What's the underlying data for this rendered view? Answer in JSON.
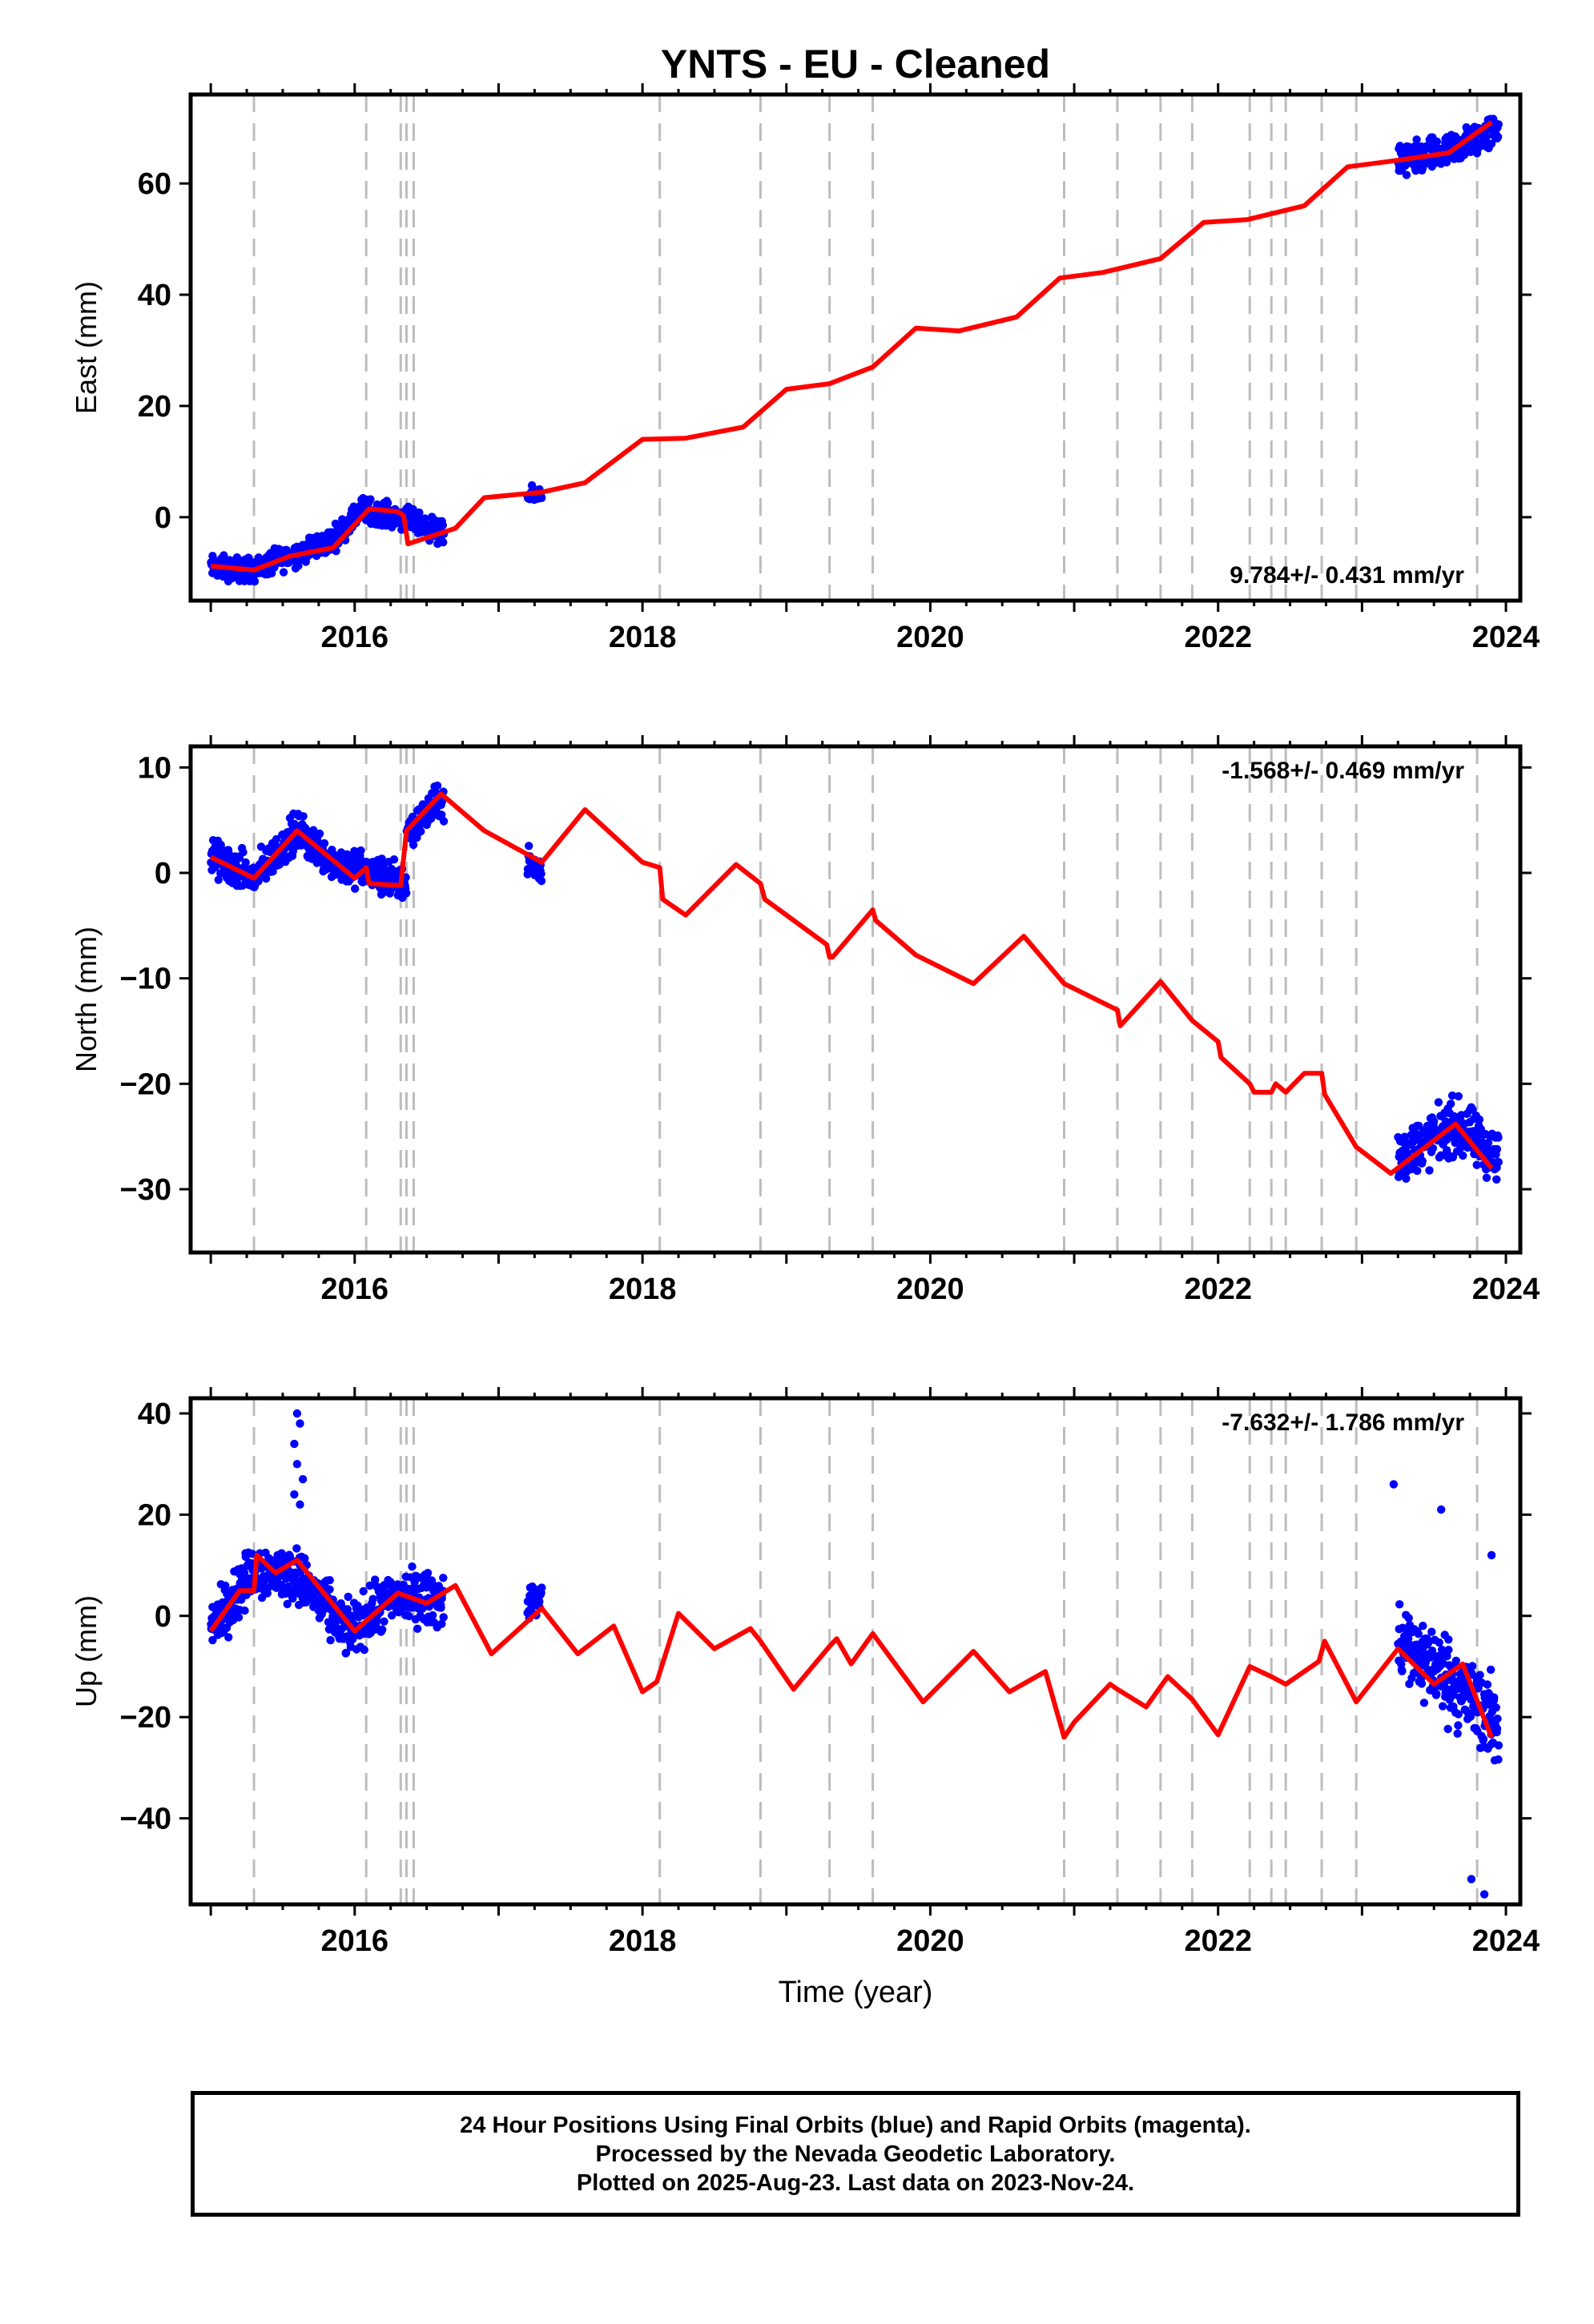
{
  "figure": {
    "title": "YNTS  - EU - Cleaned",
    "xlabel": "Time (year)"
  },
  "footer": {
    "line1": "24 Hour Positions Using Final Orbits (blue) and Rapid Orbits (magenta).",
    "line2": "Processed by the Nevada Geodetic Laboratory.",
    "line3": "Plotted on 2025-Aug-23. Last data on 2023-Nov-24."
  },
  "chart_data": [
    {
      "type": "scatter",
      "panel": "east",
      "ylabel": "East (mm)",
      "velocity_label": "9.784+/- 0.431 mm/yr",
      "xlim": [
        2014.86,
        2024.1
      ],
      "ylim": [
        -15,
        76
      ],
      "xticks": [
        2016,
        2018,
        2020,
        2022,
        2024
      ],
      "yticks": [
        0,
        20,
        40,
        60
      ],
      "colors": {
        "points": "#0000ff",
        "model": "#ff0000",
        "steps": "#bdbdbd"
      },
      "step_epochs": [
        2015.3,
        2016.08,
        2016.32,
        2016.36,
        2016.41,
        2018.12,
        2018.82,
        2019.3,
        2019.6,
        2020.93,
        2021.3,
        2021.6,
        2021.82,
        2022.22,
        2022.37,
        2022.47,
        2022.72,
        2022.96,
        2023.8
      ],
      "series": [
        {
          "name": "Final Orbits",
          "segments": [
            {
              "x_range": [
                2015.0,
                2016.62
              ],
              "trend": [
                [
                  2015.0,
                  -9
                ],
                [
                  2015.3,
                  -9.5
                ],
                [
                  2015.6,
                  -6.5
                ],
                [
                  2015.85,
                  -4
                ],
                [
                  2016.05,
                  1.5
                ],
                [
                  2016.32,
                  0
                ],
                [
                  2016.62,
                  -3
                ]
              ],
              "spread": 2.8
            },
            {
              "x_range": [
                2017.2,
                2017.3
              ],
              "trend": [
                [
                  2017.2,
                  3.5
                ],
                [
                  2017.3,
                  4.5
                ]
              ],
              "spread": 2.0
            },
            {
              "x_range": [
                2023.25,
                2023.95
              ],
              "trend": [
                [
                  2023.25,
                  64
                ],
                [
                  2023.6,
                  65.5
                ],
                [
                  2023.95,
                  70
                ]
              ],
              "spread": 4.0
            }
          ]
        }
      ],
      "model": [
        [
          2015.0,
          -8.8
        ],
        [
          2015.3,
          -9.5
        ],
        [
          2015.55,
          -7
        ],
        [
          2015.85,
          -5.5
        ],
        [
          2016.1,
          1.5
        ],
        [
          2016.3,
          1
        ],
        [
          2016.34,
          0.3
        ],
        [
          2016.37,
          -4.8
        ],
        [
          2016.5,
          -3.7
        ],
        [
          2016.7,
          -2
        ],
        [
          2016.9,
          3.5
        ],
        [
          2017.1,
          4
        ],
        [
          2017.3,
          4.5
        ],
        [
          2017.6,
          6.2
        ],
        [
          2018.0,
          14
        ],
        [
          2018.3,
          14.2
        ],
        [
          2018.7,
          16.2
        ],
        [
          2019.0,
          23
        ],
        [
          2019.3,
          24
        ],
        [
          2019.6,
          27
        ],
        [
          2019.9,
          34
        ],
        [
          2020.2,
          33.5
        ],
        [
          2020.6,
          36
        ],
        [
          2020.9,
          43
        ],
        [
          2021.2,
          44
        ],
        [
          2021.6,
          46.5
        ],
        [
          2021.9,
          53
        ],
        [
          2022.2,
          53.5
        ],
        [
          2022.6,
          56
        ],
        [
          2022.9,
          63
        ],
        [
          2023.2,
          64
        ],
        [
          2023.6,
          65.5
        ],
        [
          2023.9,
          71
        ]
      ]
    },
    {
      "type": "scatter",
      "panel": "north",
      "ylabel": "North (mm)",
      "velocity_label": "-1.568+/- 0.469 mm/yr",
      "xlim": [
        2014.86,
        2024.1
      ],
      "ylim": [
        -36,
        12
      ],
      "xticks": [
        2016,
        2018,
        2020,
        2022,
        2024
      ],
      "yticks": [
        10,
        0,
        -10,
        -20,
        -30
      ],
      "colors": {
        "points": "#0000ff",
        "model": "#ff0000",
        "steps": "#bdbdbd"
      },
      "step_epochs": [
        2015.3,
        2016.08,
        2016.32,
        2016.36,
        2016.41,
        2018.12,
        2018.82,
        2019.3,
        2019.6,
        2020.93,
        2021.3,
        2021.6,
        2021.82,
        2022.22,
        2022.37,
        2022.47,
        2022.72,
        2022.96,
        2023.8
      ],
      "series": [
        {
          "name": "Final Orbits",
          "segments": [
            {
              "x_range": [
                2015.0,
                2016.36
              ],
              "trend": [
                [
                  2015.0,
                  1.5
                ],
                [
                  2015.3,
                  -0.5
                ],
                [
                  2015.6,
                  4
                ],
                [
                  2015.85,
                  1
                ],
                [
                  2016.1,
                  0
                ],
                [
                  2016.36,
                  -1
                ]
              ],
              "spread": 2.4
            },
            {
              "x_range": [
                2016.36,
                2016.62
              ],
              "trend": [
                [
                  2016.36,
                  4
                ],
                [
                  2016.62,
                  7
                ]
              ],
              "spread": 2.2
            },
            {
              "x_range": [
                2017.2,
                2017.3
              ],
              "trend": [
                [
                  2017.2,
                  1
                ],
                [
                  2017.3,
                  0
                ]
              ],
              "spread": 2.0
            },
            {
              "x_range": [
                2023.25,
                2023.95
              ],
              "trend": [
                [
                  2023.25,
                  -27
                ],
                [
                  2023.65,
                  -24
                ],
                [
                  2023.95,
                  -27
                ]
              ],
              "spread": 3.5
            }
          ]
        }
      ],
      "model": [
        [
          2015.0,
          1.5
        ],
        [
          2015.3,
          -0.5
        ],
        [
          2015.6,
          4
        ],
        [
          2016.0,
          -0.5
        ],
        [
          2016.08,
          0.5
        ],
        [
          2016.1,
          -1
        ],
        [
          2016.32,
          -1.2
        ],
        [
          2016.36,
          4
        ],
        [
          2016.6,
          7.5
        ],
        [
          2016.9,
          4
        ],
        [
          2017.3,
          1
        ],
        [
          2017.6,
          6
        ],
        [
          2018.0,
          1
        ],
        [
          2018.12,
          0.5
        ],
        [
          2018.14,
          -2.5
        ],
        [
          2018.3,
          -4
        ],
        [
          2018.65,
          0.8
        ],
        [
          2018.82,
          -1
        ],
        [
          2018.85,
          -2.5
        ],
        [
          2019.1,
          -5
        ],
        [
          2019.28,
          -6.8
        ],
        [
          2019.3,
          -8
        ],
        [
          2019.32,
          -8
        ],
        [
          2019.6,
          -3.5
        ],
        [
          2019.62,
          -4.5
        ],
        [
          2019.9,
          -7.8
        ],
        [
          2020.3,
          -10.5
        ],
        [
          2020.65,
          -6
        ],
        [
          2020.93,
          -10.5
        ],
        [
          2021.3,
          -13
        ],
        [
          2021.32,
          -14.5
        ],
        [
          2021.6,
          -10.3
        ],
        [
          2021.82,
          -14
        ],
        [
          2022.0,
          -16
        ],
        [
          2022.02,
          -17.5
        ],
        [
          2022.22,
          -20
        ],
        [
          2022.25,
          -20.8
        ],
        [
          2022.37,
          -20.8
        ],
        [
          2022.4,
          -20
        ],
        [
          2022.47,
          -20.8
        ],
        [
          2022.6,
          -19
        ],
        [
          2022.72,
          -19
        ],
        [
          2022.74,
          -21
        ],
        [
          2022.96,
          -26
        ],
        [
          2023.2,
          -28.5
        ],
        [
          2023.65,
          -23.8
        ],
        [
          2023.9,
          -28
        ]
      ]
    },
    {
      "type": "scatter",
      "panel": "up",
      "ylabel": "Up (mm)",
      "velocity_label": "-7.632+/- 1.786 mm/yr",
      "xlim": [
        2014.86,
        2024.1
      ],
      "ylim": [
        -57,
        43
      ],
      "xticks": [
        2016,
        2018,
        2020,
        2022,
        2024
      ],
      "yticks": [
        40,
        20,
        0,
        -20,
        -40
      ],
      "colors": {
        "points": "#0000ff",
        "model": "#ff0000",
        "steps": "#bdbdbd"
      },
      "step_epochs": [
        2015.3,
        2016.08,
        2016.32,
        2016.36,
        2016.41,
        2018.12,
        2018.82,
        2019.3,
        2019.6,
        2020.93,
        2021.3,
        2021.6,
        2021.82,
        2022.22,
        2022.37,
        2022.47,
        2022.72,
        2022.96,
        2023.8
      ],
      "series": [
        {
          "name": "Final Orbits",
          "segments": [
            {
              "x_range": [
                2015.0,
                2016.62
              ],
              "trend": [
                [
                  2015.0,
                  -2
                ],
                [
                  2015.3,
                  9
                ],
                [
                  2015.6,
                  8
                ],
                [
                  2015.95,
                  -3
                ],
                [
                  2016.3,
                  4
                ],
                [
                  2016.62,
                  3
                ]
              ],
              "spread": 7.0
            },
            {
              "x_range": [
                2017.2,
                2017.3
              ],
              "trend": [
                [
                  2017.2,
                  2
                ],
                [
                  2017.3,
                  4
                ]
              ],
              "spread": 4.0
            },
            {
              "x_range": [
                2023.25,
                2023.95
              ],
              "trend": [
                [
                  2023.25,
                  -5
                ],
                [
                  2023.6,
                  -12
                ],
                [
                  2023.95,
                  -22
                ]
              ],
              "spread": 11.0
            }
          ]
        },
        {
          "name": "Final Orbits outliers",
          "points": [
            [
              2015.6,
              40
            ],
            [
              2015.62,
              38
            ],
            [
              2015.58,
              34
            ],
            [
              2015.6,
              30
            ],
            [
              2015.64,
              27
            ],
            [
              2015.58,
              24
            ],
            [
              2015.62,
              22
            ],
            [
              2023.22,
              26
            ],
            [
              2023.55,
              21
            ],
            [
              2023.76,
              -52
            ],
            [
              2023.85,
              -55
            ],
            [
              2023.9,
              12
            ]
          ]
        }
      ],
      "model": [
        [
          2015.0,
          -3
        ],
        [
          2015.2,
          5
        ],
        [
          2015.3,
          5
        ],
        [
          2015.32,
          12
        ],
        [
          2015.45,
          8.5
        ],
        [
          2015.6,
          11
        ],
        [
          2015.8,
          4
        ],
        [
          2016.0,
          -3
        ],
        [
          2016.3,
          4.5
        ],
        [
          2016.5,
          2.5
        ],
        [
          2016.7,
          6
        ],
        [
          2016.95,
          -7.5
        ],
        [
          2017.3,
          1.5
        ],
        [
          2017.55,
          -7.5
        ],
        [
          2017.8,
          -2
        ],
        [
          2018.0,
          -15
        ],
        [
          2018.1,
          -13
        ],
        [
          2018.25,
          0.5
        ],
        [
          2018.5,
          -6.5
        ],
        [
          2018.75,
          -2.5
        ],
        [
          2018.82,
          -5
        ],
        [
          2019.05,
          -14.5
        ],
        [
          2019.3,
          -6
        ],
        [
          2019.35,
          -4.5
        ],
        [
          2019.45,
          -9.5
        ],
        [
          2019.6,
          -3.5
        ],
        [
          2019.95,
          -17
        ],
        [
          2020.3,
          -7
        ],
        [
          2020.55,
          -15
        ],
        [
          2020.8,
          -11
        ],
        [
          2020.93,
          -24
        ],
        [
          2021.0,
          -21
        ],
        [
          2021.25,
          -13.5
        ],
        [
          2021.3,
          -14.5
        ],
        [
          2021.5,
          -18
        ],
        [
          2021.65,
          -12
        ],
        [
          2021.82,
          -16.5
        ],
        [
          2022.0,
          -23.5
        ],
        [
          2022.22,
          -10
        ],
        [
          2022.37,
          -12
        ],
        [
          2022.47,
          -13.5
        ],
        [
          2022.7,
          -9
        ],
        [
          2022.74,
          -5
        ],
        [
          2022.96,
          -17
        ],
        [
          2023.25,
          -6.5
        ],
        [
          2023.5,
          -13.5
        ],
        [
          2023.7,
          -9.5
        ],
        [
          2023.9,
          -24
        ]
      ]
    }
  ]
}
